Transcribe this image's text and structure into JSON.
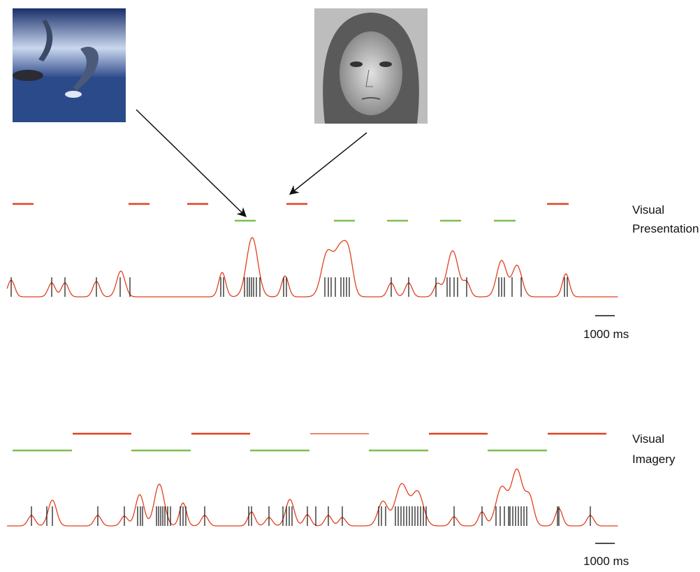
{
  "panels": [
    {
      "label": [
        "Visual",
        "Presentation"
      ],
      "scale_bar": "1000 ms"
    },
    {
      "label": [
        "Visual",
        "Imagery"
      ],
      "scale_bar": "1000 ms"
    }
  ]
}
